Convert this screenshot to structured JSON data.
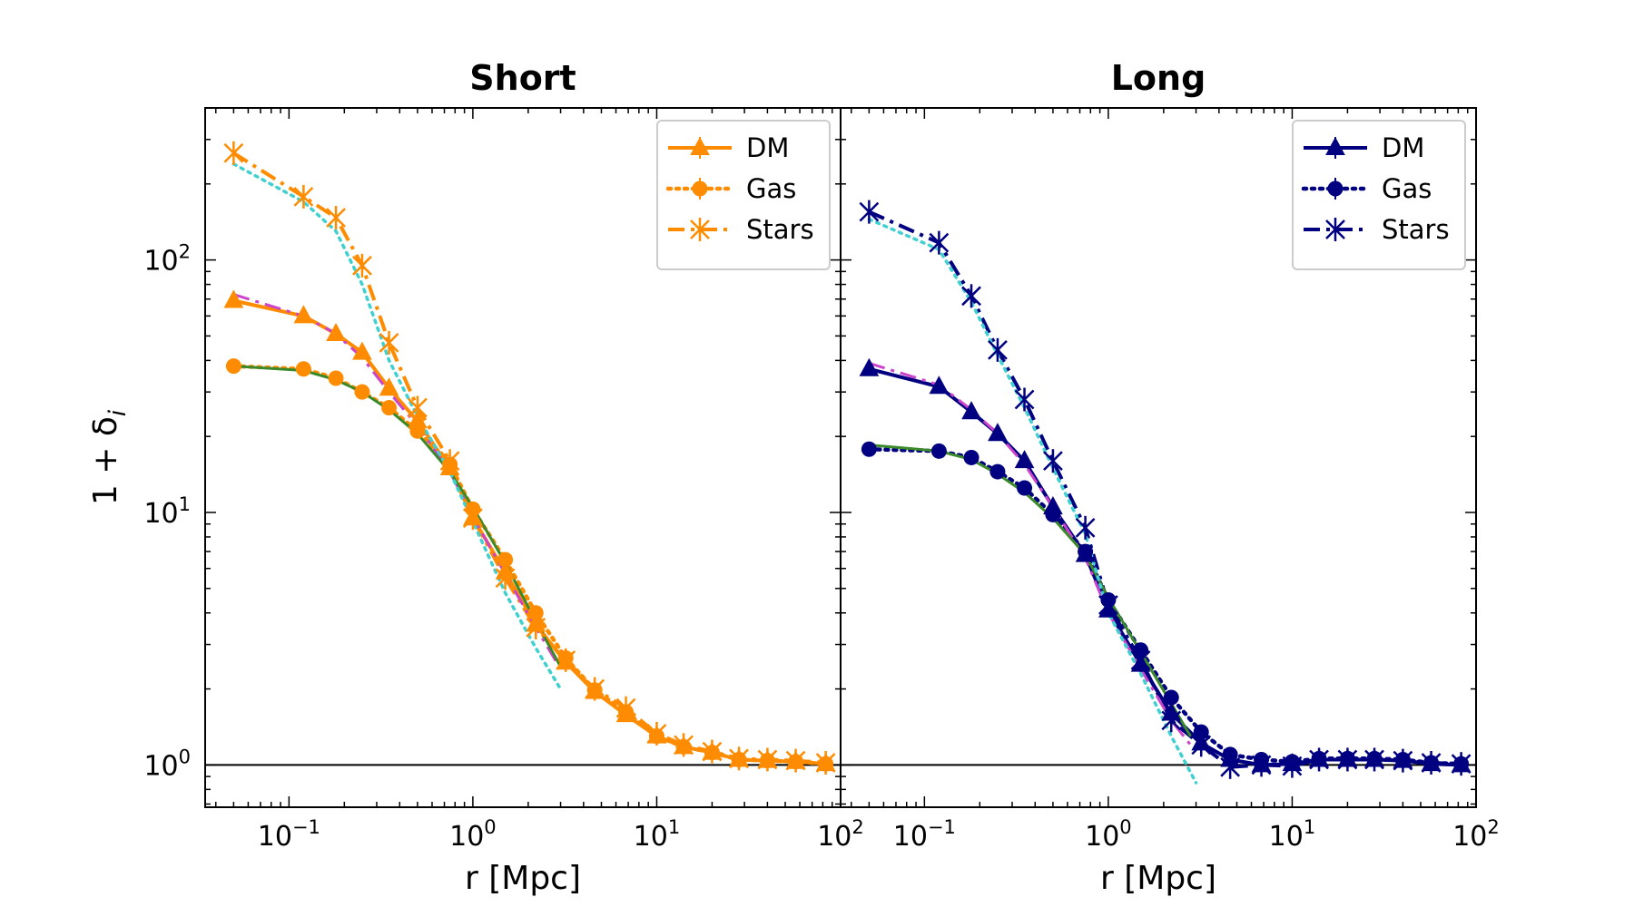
{
  "chart_data": {
    "type": "line",
    "y_axis_label": "1 + δ",
    "y_axis_subscript": "i",
    "x_scale": "log",
    "y_scale": "log",
    "xlim": [
      0.035,
      100
    ],
    "ylim": [
      0.68,
      400
    ],
    "x_ticks": [
      {
        "value": 0.1,
        "base": "10",
        "exp": "−1"
      },
      {
        "value": 1,
        "base": "10",
        "exp": "0"
      },
      {
        "value": 10,
        "base": "10",
        "exp": "1"
      },
      {
        "value": 100,
        "base": "10",
        "exp": "2"
      }
    ],
    "y_ticks": [
      {
        "value": 1,
        "base": "10",
        "exp": "0"
      },
      {
        "value": 10,
        "base": "10",
        "exp": "1"
      },
      {
        "value": 100,
        "base": "10",
        "exp": "2"
      }
    ],
    "reference_line": {
      "y": 1,
      "color": "#000000"
    },
    "panels": [
      {
        "title": "Short",
        "xlabel": "r [Mpc]",
        "color": "#ff8c00",
        "legend_position": "top-right",
        "legend": [
          "DM",
          "Gas",
          "Stars"
        ],
        "series": [
          {
            "name": "DM",
            "marker": "triangle",
            "dash": "solid",
            "x": [
              0.05,
              0.12,
              0.18,
              0.25,
              0.35,
              0.5,
              0.75,
              1.0,
              1.5,
              2.2,
              3.2,
              4.6,
              6.8,
              10,
              14,
              20,
              28,
              40,
              57,
              83
            ],
            "y": [
              69,
              60,
              51,
              43,
              31,
              23,
              15,
              9.5,
              5.8,
              3.6,
              2.55,
              1.95,
              1.58,
              1.3,
              1.18,
              1.12,
              1.05,
              1.04,
              1.03,
              1.01
            ]
          },
          {
            "name": "Gas",
            "marker": "circle",
            "dash": "dotted",
            "x": [
              0.05,
              0.12,
              0.18,
              0.25,
              0.35,
              0.5,
              0.75,
              1.0,
              1.5,
              2.2,
              3.2,
              4.6,
              6.8,
              10,
              14,
              20,
              28,
              40,
              57,
              83
            ],
            "y": [
              38,
              37,
              34,
              30,
              26,
              21,
              15.5,
              10.3,
              6.5,
              4.0,
              2.65,
              1.98,
              1.62,
              1.3,
              1.18,
              1.12,
              1.05,
              1.04,
              1.03,
              1.01
            ]
          },
          {
            "name": "Stars",
            "marker": "star",
            "dash": "dashdot",
            "x": [
              0.05,
              0.12,
              0.18,
              0.25,
              0.35,
              0.5,
              0.75,
              1.0,
              1.5,
              2.2,
              3.2,
              4.6,
              6.8,
              10,
              14,
              20,
              28,
              40,
              57,
              83
            ],
            "y": [
              265,
              178,
              147,
              95,
              47,
              26,
              16,
              9.5,
              5.5,
              3.5,
              2.6,
              2.0,
              1.68,
              1.33,
              1.2,
              1.13,
              1.06,
              1.05,
              1.04,
              1.02
            ]
          }
        ],
        "fits": [
          {
            "name": "DM fit",
            "color": "#cc44cc",
            "dash": "dashdot",
            "x": [
              0.05,
              0.12,
              0.18,
              0.25,
              0.35,
              0.5,
              0.75,
              1.0,
              1.5,
              2.2,
              3.0
            ],
            "y": [
              73,
              60,
              51,
              41,
              30,
              22,
              14.5,
              9.6,
              5.7,
              3.5,
              2.4
            ]
          },
          {
            "name": "Gas fit",
            "color": "#3a8a2a",
            "dash": "solid",
            "x": [
              0.05,
              0.12,
              0.18,
              0.25,
              0.35,
              0.5,
              0.75,
              1.0,
              1.5,
              2.2,
              3.0
            ],
            "y": [
              38,
              36.5,
              33.5,
              30,
              25.5,
              20.5,
              14.5,
              10.5,
              6.3,
              3.7,
              2.45
            ]
          },
          {
            "name": "Stars fit",
            "color": "#40d0d0",
            "dash": "dotted",
            "x": [
              0.05,
              0.12,
              0.18,
              0.25,
              0.35,
              0.5,
              0.75,
              1.0,
              1.5,
              2.2,
              3.0
            ],
            "y": [
              240,
              170,
              130,
              80,
              40,
              24,
              14.5,
              9.2,
              4.8,
              2.9,
              2.0
            ]
          }
        ]
      },
      {
        "title": "Long",
        "xlabel": "r [Mpc]",
        "color": "#000080",
        "legend_position": "top-right",
        "legend": [
          "DM",
          "Gas",
          "Stars"
        ],
        "series": [
          {
            "name": "DM",
            "marker": "triangle",
            "dash": "solid",
            "x": [
              0.05,
              0.12,
              0.18,
              0.25,
              0.35,
              0.5,
              0.75,
              1.0,
              1.5,
              2.2,
              3.2,
              4.6,
              6.8,
              10,
              14,
              20,
              28,
              40,
              57,
              83
            ],
            "y": [
              37,
              31.5,
              25,
              20.5,
              16,
              10.5,
              6.8,
              4.1,
              2.5,
              1.6,
              1.22,
              1.05,
              1.0,
              1.01,
              1.05,
              1.05,
              1.05,
              1.04,
              1.01,
              1.0
            ]
          },
          {
            "name": "Gas",
            "marker": "circle",
            "dash": "dotted",
            "x": [
              0.05,
              0.12,
              0.18,
              0.25,
              0.35,
              0.5,
              0.75,
              1.0,
              1.5,
              2.2,
              3.2,
              4.6,
              6.8,
              10,
              14,
              20,
              28,
              40,
              57,
              83
            ],
            "y": [
              17.8,
              17.5,
              16.5,
              14.5,
              12.5,
              9.8,
              7.0,
              4.5,
              2.85,
              1.85,
              1.35,
              1.1,
              1.05,
              1.03,
              1.06,
              1.06,
              1.06,
              1.05,
              1.02,
              1.01
            ]
          },
          {
            "name": "Stars",
            "marker": "star",
            "dash": "dashdot",
            "x": [
              0.05,
              0.12,
              0.18,
              0.25,
              0.35,
              0.5,
              0.75,
              1.0,
              1.5,
              2.2,
              3.2,
              4.6,
              6.8,
              10,
              14,
              20,
              28,
              40,
              57,
              83
            ],
            "y": [
              155,
              117,
              72,
              44,
              28,
              16,
              8.7,
              4.3,
              2.6,
              1.5,
              1.2,
              0.98,
              1.0,
              0.99,
              1.05,
              1.05,
              1.05,
              1.04,
              1.02,
              1.01
            ]
          }
        ],
        "fits": [
          {
            "name": "DM fit",
            "color": "#cc44cc",
            "dash": "dashdot",
            "x": [
              0.05,
              0.12,
              0.18,
              0.25,
              0.35,
              0.5,
              0.75,
              1.0,
              1.5,
              2.2,
              2.8
            ],
            "y": [
              39,
              32,
              25.5,
              20.5,
              15.5,
              10.5,
              6.6,
              4.0,
              2.4,
              1.5,
              1.2
            ]
          },
          {
            "name": "Gas fit",
            "color": "#3a8a2a",
            "dash": "solid",
            "x": [
              0.05,
              0.12,
              0.18,
              0.25,
              0.35,
              0.5,
              0.75,
              1.0,
              1.5,
              2.2,
              2.8
            ],
            "y": [
              18.5,
              17.5,
              16.2,
              14.2,
              12.0,
              9.5,
              6.8,
              4.6,
              2.8,
              1.75,
              1.3
            ]
          },
          {
            "name": "Stars fit",
            "color": "#40d0d0",
            "dash": "dotted",
            "x": [
              0.05,
              0.12,
              0.18,
              0.25,
              0.35,
              0.5,
              0.75,
              1.0,
              1.5,
              2.2,
              3.0
            ],
            "y": [
              145,
              110,
              68,
              42,
              26,
              15,
              8.2,
              4.0,
              2.3,
              1.3,
              0.85
            ]
          }
        ]
      }
    ]
  }
}
